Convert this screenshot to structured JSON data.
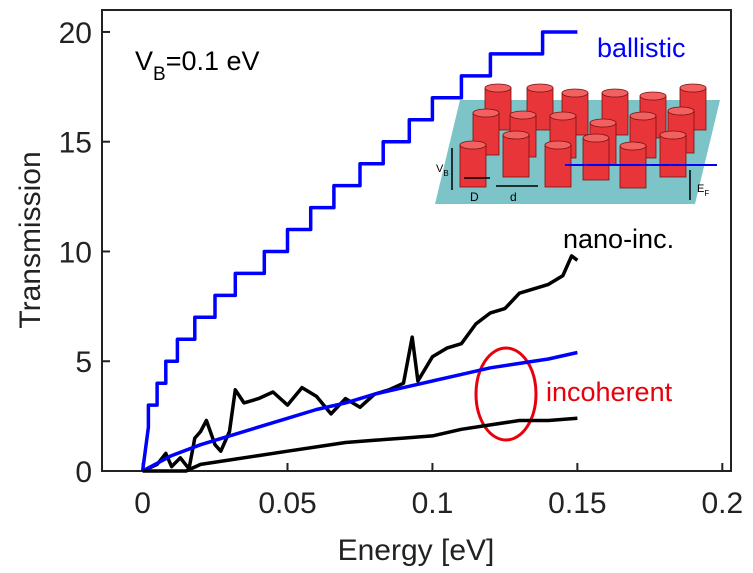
{
  "chart_data": {
    "type": "line",
    "x_label": "Energy [eV]",
    "y_label": "Transmission",
    "xlim": [
      -0.014,
      0.203
    ],
    "ylim": [
      0,
      21
    ],
    "xticks": [
      0,
      0.05,
      0.1,
      0.15,
      0.2
    ],
    "yticks": [
      0,
      5,
      10,
      15,
      20
    ],
    "series": [
      {
        "name": "ballistic",
        "color": "#0000ff",
        "x": [
          0,
          0.002,
          0.002,
          0.005,
          0.005,
          0.008,
          0.008,
          0.012,
          0.012,
          0.018,
          0.018,
          0.025,
          0.025,
          0.032,
          0.032,
          0.042,
          0.042,
          0.05,
          0.05,
          0.058,
          0.058,
          0.066,
          0.066,
          0.075,
          0.075,
          0.083,
          0.083,
          0.092,
          0.092,
          0.1,
          0.1,
          0.11,
          0.11,
          0.12,
          0.12,
          0.138,
          0.138,
          0.15
        ],
        "values": [
          0,
          2,
          3,
          3,
          4,
          4,
          5,
          5,
          6,
          6,
          7,
          7,
          8,
          8,
          9,
          9,
          10,
          10,
          11,
          11,
          12,
          12,
          13,
          13,
          14,
          14,
          15,
          15,
          16,
          16,
          17,
          17,
          18,
          18,
          19,
          19,
          20,
          20
        ]
      },
      {
        "name": "nano-inc.",
        "color": "#000000",
        "x": [
          0,
          0.005,
          0.008,
          0.01,
          0.013,
          0.016,
          0.018,
          0.02,
          0.022,
          0.025,
          0.027,
          0.03,
          0.032,
          0.035,
          0.04,
          0.045,
          0.05,
          0.055,
          0.06,
          0.065,
          0.07,
          0.075,
          0.08,
          0.085,
          0.09,
          0.093,
          0.095,
          0.1,
          0.105,
          0.11,
          0.115,
          0.12,
          0.125,
          0.13,
          0.135,
          0.14,
          0.145,
          0.148,
          0.15
        ],
        "values": [
          0,
          0.3,
          0.8,
          0.2,
          0.6,
          0.1,
          1.5,
          1.8,
          2.3,
          1.2,
          0.9,
          1.8,
          3.7,
          3.1,
          3.3,
          3.6,
          3.0,
          3.8,
          3.4,
          2.6,
          3.3,
          2.9,
          3.5,
          3.7,
          4.0,
          6.1,
          4.1,
          5.2,
          5.6,
          5.8,
          6.7,
          7.2,
          7.4,
          8.1,
          8.3,
          8.5,
          8.9,
          9.8,
          9.6
        ]
      },
      {
        "color": "#0000ff",
        "x": [
          0,
          0.01,
          0.02,
          0.03,
          0.04,
          0.05,
          0.06,
          0.07,
          0.08,
          0.09,
          0.1,
          0.11,
          0.12,
          0.13,
          0.14,
          0.15
        ],
        "values": [
          0,
          0.7,
          1.2,
          1.6,
          2.0,
          2.4,
          2.8,
          3.1,
          3.5,
          3.8,
          4.1,
          4.4,
          4.7,
          4.9,
          5.1,
          5.4
        ]
      },
      {
        "color": "#000000",
        "x": [
          0,
          0.015,
          0.02,
          0.03,
          0.04,
          0.05,
          0.06,
          0.07,
          0.08,
          0.09,
          0.1,
          0.11,
          0.12,
          0.13,
          0.14,
          0.15
        ],
        "values": [
          0,
          0,
          0.3,
          0.5,
          0.7,
          0.9,
          1.1,
          1.3,
          1.4,
          1.5,
          1.6,
          1.9,
          2.1,
          2.3,
          2.3,
          2.4
        ]
      }
    ],
    "annotations": {
      "incoherent": "incoherent",
      "vb": [
        "V",
        "B",
        "=0.1 eV"
      ]
    },
    "inset": {
      "vb": [
        "V",
        "B"
      ],
      "D": "D",
      "d": "d",
      "ef": [
        "E",
        "F"
      ]
    }
  }
}
